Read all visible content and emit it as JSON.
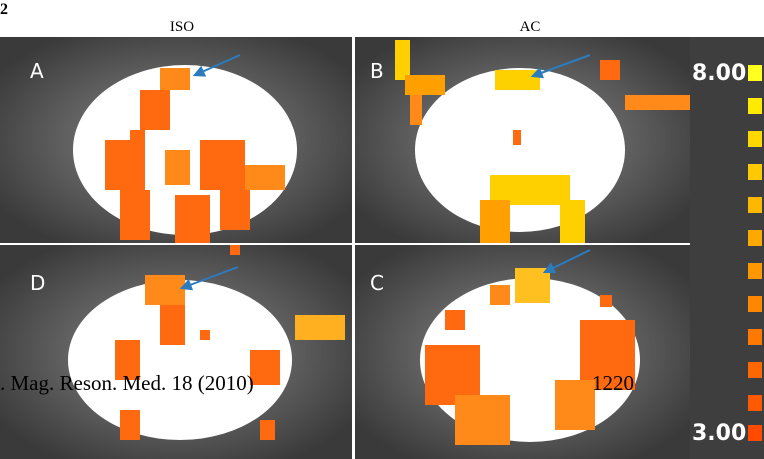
{
  "figure_number": "2",
  "column_labels": [
    "ISO",
    "AC"
  ],
  "panels": [
    {
      "label": "A"
    },
    {
      "label": "B"
    },
    {
      "label": "D"
    },
    {
      "label": "C"
    }
  ],
  "colorbar": {
    "max_label": "8.00",
    "min_label": "3.00"
  },
  "footer": {
    "citation": ". Mag. Reson. Med. 18 (2010)",
    "page": "1220"
  }
}
